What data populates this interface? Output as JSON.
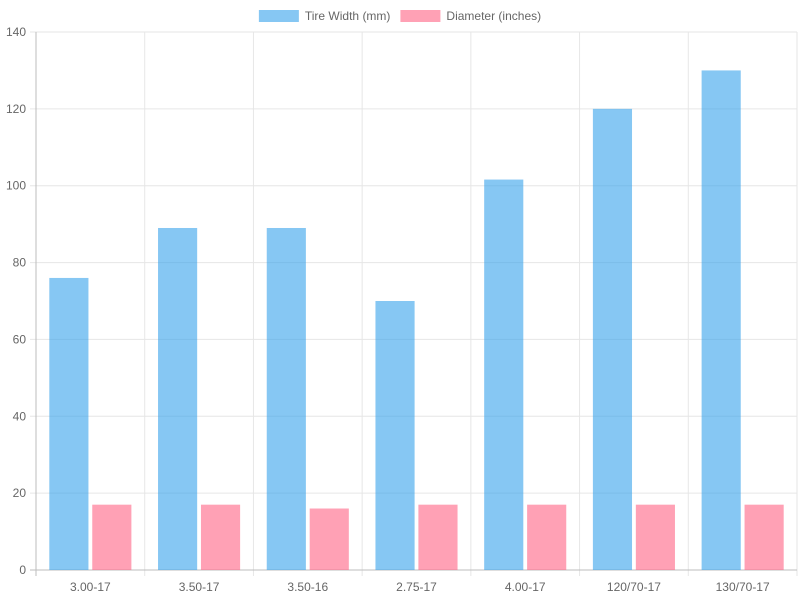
{
  "chart_data": {
    "type": "bar",
    "categories": [
      "3.00-17",
      "3.50-17",
      "3.50-16",
      "2.75-17",
      "4.00-17",
      "120/70-17",
      "130/70-17"
    ],
    "series": [
      {
        "name": "Tire Width (mm)",
        "values": [
          76,
          89,
          89,
          70,
          101.6,
          120,
          130
        ],
        "color": "#36a2eb"
      },
      {
        "name": "Diameter (inches)",
        "values": [
          17,
          17,
          16,
          17,
          17,
          17,
          17
        ],
        "color": "#ff6384"
      }
    ],
    "yticks": [
      "0",
      "20",
      "40",
      "60",
      "80",
      "100",
      "120",
      "140"
    ],
    "ylim": [
      0,
      140
    ],
    "grid": true,
    "legend": "top-center"
  }
}
